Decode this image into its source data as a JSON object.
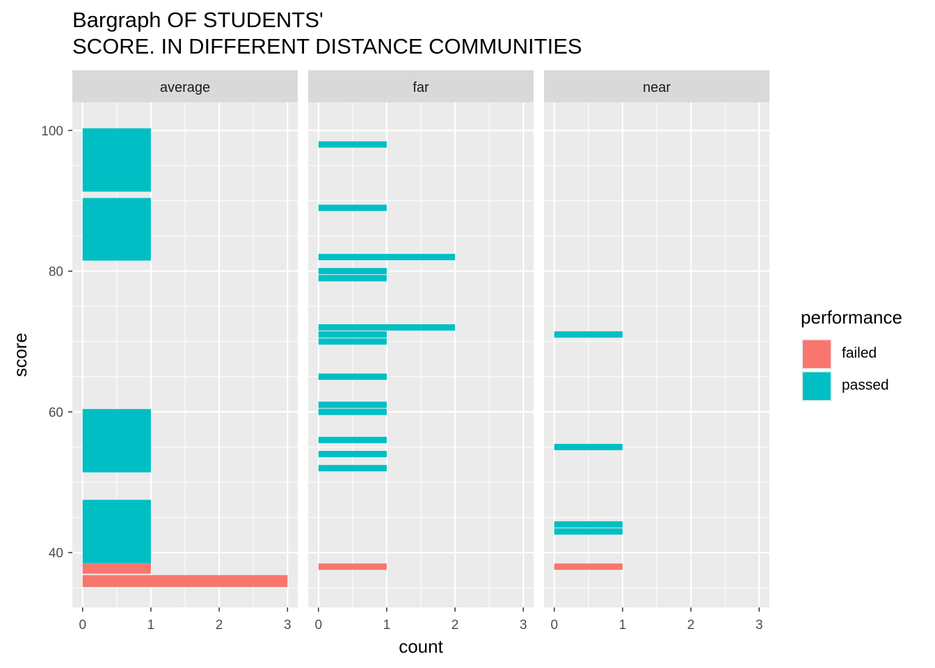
{
  "title": {
    "line1": "Bargraph OF STUDENTS'",
    "line2": "SCORE. IN DIFFERENT DISTANCE COMMUNITIES"
  },
  "legend": {
    "title": "performance",
    "items": [
      {
        "label": "failed",
        "color": "#F8766D"
      },
      {
        "label": "passed",
        "color": "#00BFC4"
      }
    ]
  },
  "chart_data": {
    "type": "bar",
    "orientation": "horizontal",
    "title": "Bargraph OF STUDENTS' SCORE. IN DIFFERENT DISTANCE COMMUNITIES",
    "xlabel": "count",
    "ylabel": "score",
    "xlim": [
      -0.15,
      3.15
    ],
    "ylim": [
      32.2,
      104
    ],
    "x_ticks": [
      0,
      1,
      2,
      3
    ],
    "y_ticks": [
      40,
      60,
      80,
      100
    ],
    "grid": true,
    "legend_position": "right",
    "facets": [
      {
        "label": "average",
        "bars": [
          {
            "performance": "passed",
            "score_low": 91.3,
            "score_high": 100.3,
            "count": 1
          },
          {
            "performance": "passed",
            "score_low": 81.5,
            "score_high": 90.4,
            "count": 1
          },
          {
            "performance": "passed",
            "score_low": 51.4,
            "score_high": 60.4,
            "count": 1
          },
          {
            "performance": "passed",
            "score_low": 38.5,
            "score_high": 47.5,
            "count": 1
          },
          {
            "performance": "failed",
            "score_low": 37.0,
            "score_high": 38.5,
            "count": 1
          },
          {
            "performance": "failed",
            "score_low": 35.1,
            "score_high": 36.8,
            "count": 3
          }
        ]
      },
      {
        "label": "far",
        "bars": [
          {
            "performance": "passed",
            "score": 98,
            "count": 1
          },
          {
            "performance": "passed",
            "score": 89,
            "count": 1
          },
          {
            "performance": "passed",
            "score": 82,
            "count": 2
          },
          {
            "performance": "passed",
            "score": 80,
            "count": 1
          },
          {
            "performance": "passed",
            "score": 79,
            "count": 1
          },
          {
            "performance": "passed",
            "score": 72,
            "count": 2
          },
          {
            "performance": "passed",
            "score": 71,
            "count": 1
          },
          {
            "performance": "passed",
            "score": 70,
            "count": 1
          },
          {
            "performance": "passed",
            "score": 65,
            "count": 1
          },
          {
            "performance": "passed",
            "score": 61,
            "count": 1
          },
          {
            "performance": "passed",
            "score": 60,
            "count": 1
          },
          {
            "performance": "passed",
            "score": 56,
            "count": 1
          },
          {
            "performance": "passed",
            "score": 54,
            "count": 1
          },
          {
            "performance": "passed",
            "score": 52,
            "count": 1
          },
          {
            "performance": "failed",
            "score": 38,
            "count": 1
          }
        ]
      },
      {
        "label": "near",
        "bars": [
          {
            "performance": "passed",
            "score": 71,
            "count": 1
          },
          {
            "performance": "passed",
            "score": 55,
            "count": 1
          },
          {
            "performance": "passed",
            "score": 44,
            "count": 1
          },
          {
            "performance": "passed",
            "score": 43,
            "count": 1
          },
          {
            "performance": "failed",
            "score": 38,
            "count": 1
          }
        ]
      }
    ]
  }
}
